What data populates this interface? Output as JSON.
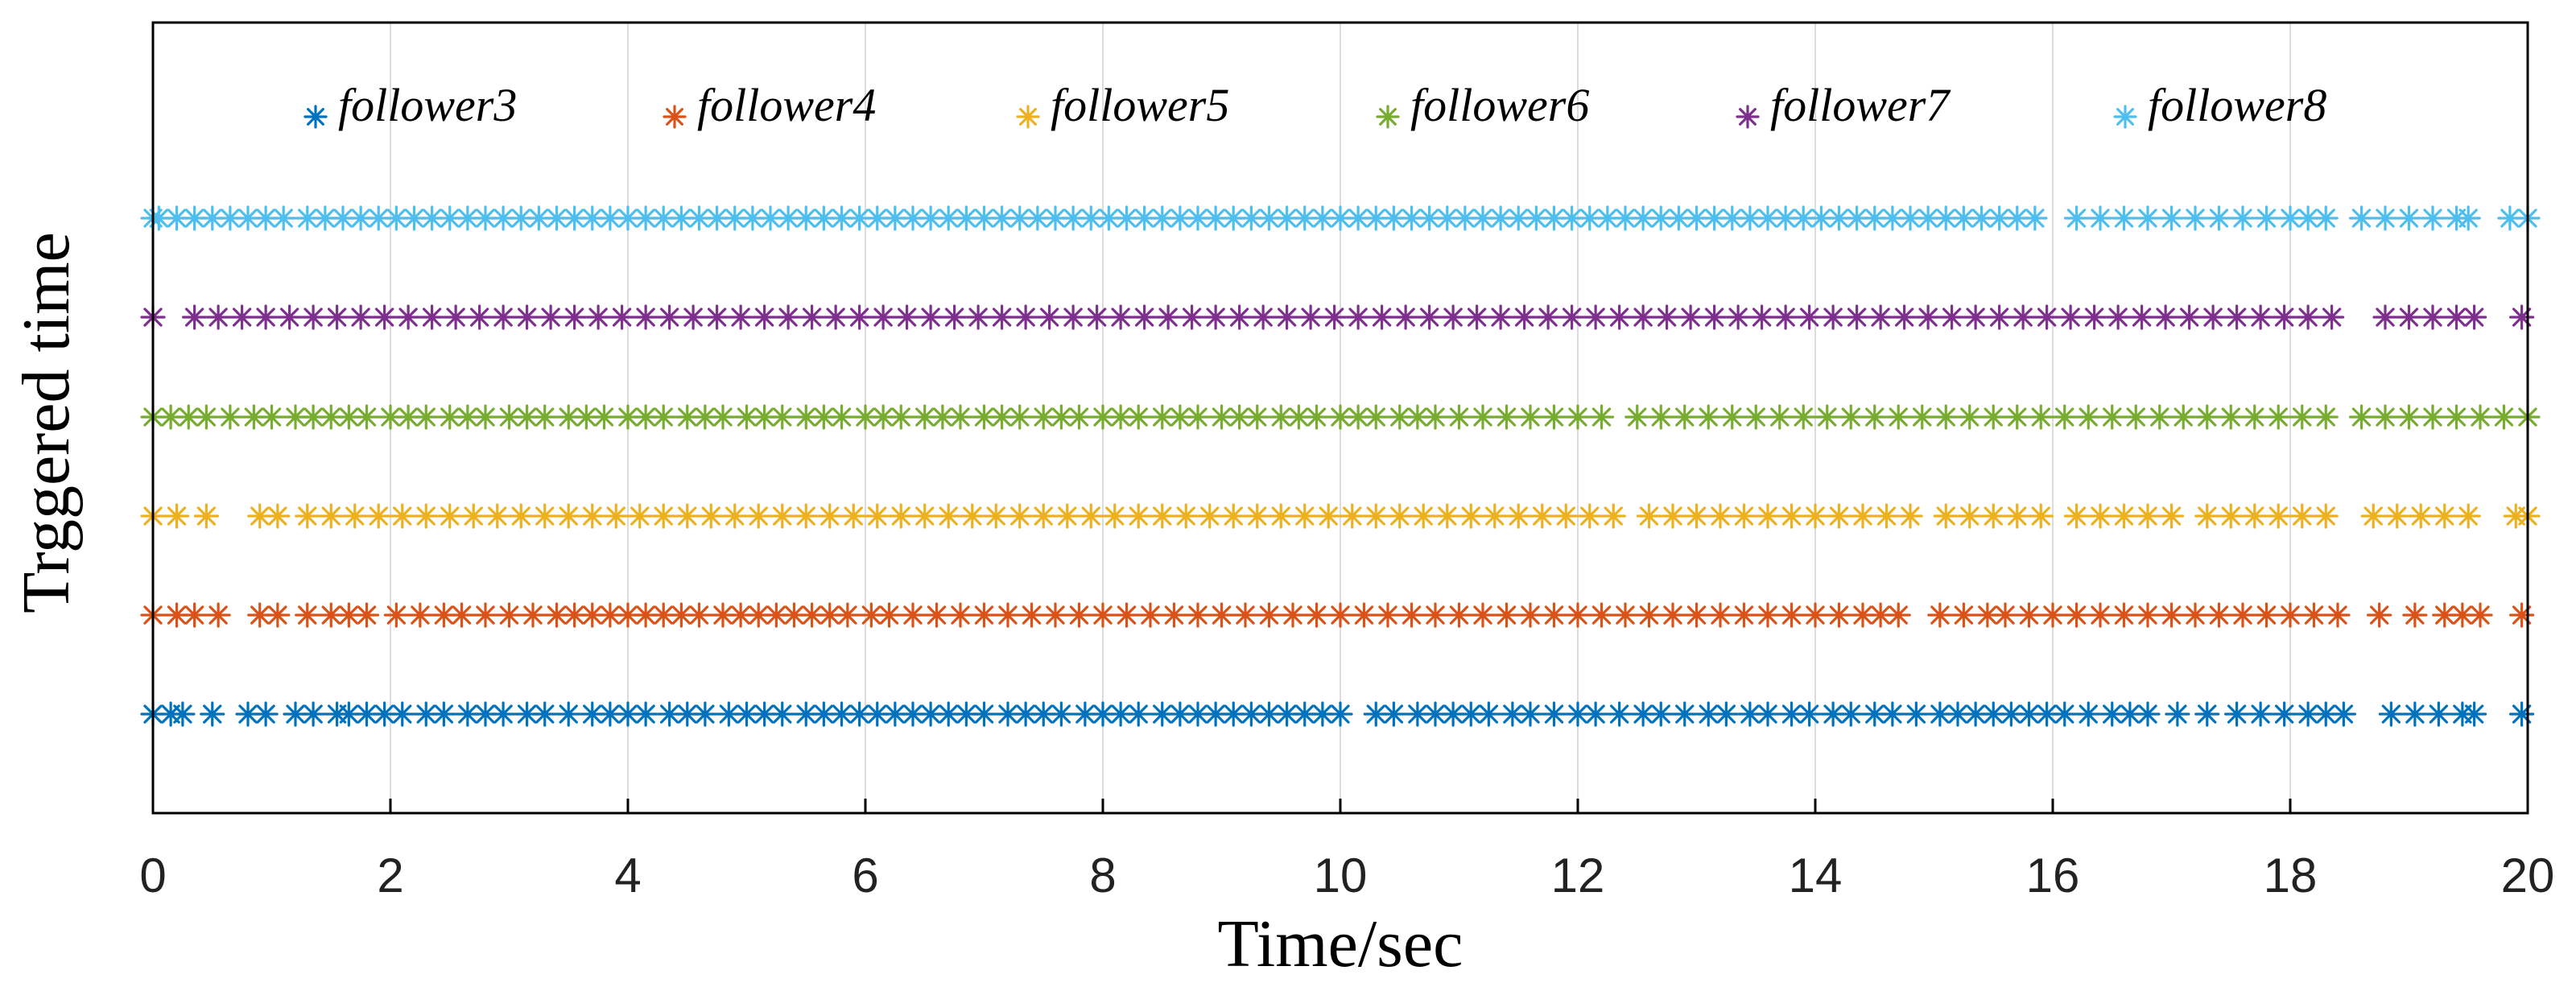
{
  "chart_data": {
    "type": "scatter",
    "title": "",
    "xlabel": "Time/sec",
    "ylabel": "Trggered time",
    "xlim": [
      0,
      20
    ],
    "xticks": [
      "0",
      "2",
      "4",
      "6",
      "8",
      "10",
      "12",
      "14",
      "16",
      "18",
      "20"
    ],
    "grid": "vertical",
    "legend": "top, single row inside axes",
    "marker": "asterisk",
    "series": [
      {
        "name": "follower3",
        "color": "#0072BD",
        "row": 1,
        "x": [
          0.0,
          0.15,
          0.25,
          0.5,
          0.8,
          0.95,
          1.2,
          1.35,
          1.55,
          1.65,
          1.8,
          1.95,
          2.1,
          2.3,
          2.45,
          2.65,
          2.8,
          2.95,
          3.15,
          3.3,
          3.5,
          3.7,
          3.85,
          4.0,
          4.15,
          4.35,
          4.5,
          4.65,
          4.85,
          5.0,
          5.15,
          5.3,
          5.5,
          5.65,
          5.8,
          5.95,
          6.1,
          6.25,
          6.4,
          6.55,
          6.7,
          6.85,
          7.0,
          7.2,
          7.35,
          7.5,
          7.65,
          7.85,
          8.0,
          8.15,
          8.3,
          8.5,
          8.65,
          8.8,
          8.95,
          9.1,
          9.25,
          9.4,
          9.55,
          9.7,
          9.85,
          10.0,
          10.3,
          10.45,
          10.65,
          10.8,
          10.95,
          11.1,
          11.25,
          11.45,
          11.6,
          11.8,
          12.0,
          12.15,
          12.35,
          12.55,
          12.7,
          12.9,
          13.1,
          13.25,
          13.45,
          13.6,
          13.8,
          13.95,
          14.15,
          14.3,
          14.5,
          14.65,
          14.85,
          15.05,
          15.2,
          15.35,
          15.5,
          15.65,
          15.8,
          15.95,
          16.1,
          16.3,
          16.5,
          16.65,
          16.8,
          17.05,
          17.3,
          17.55,
          17.75,
          17.95,
          18.15,
          18.3,
          18.45,
          18.85,
          19.05,
          19.25,
          19.45,
          19.55,
          19.95
        ]
      },
      {
        "name": "follower4",
        "color": "#D95319",
        "row": 2,
        "x": [
          0.0,
          0.2,
          0.35,
          0.55,
          0.9,
          1.05,
          1.3,
          1.5,
          1.65,
          1.8,
          2.05,
          2.25,
          2.45,
          2.6,
          2.8,
          3.0,
          3.2,
          3.4,
          3.55,
          3.7,
          3.85,
          4.0,
          4.15,
          4.3,
          4.45,
          4.6,
          4.8,
          4.95,
          5.1,
          5.25,
          5.4,
          5.55,
          5.7,
          5.85,
          6.05,
          6.2,
          6.4,
          6.6,
          6.8,
          7.0,
          7.2,
          7.4,
          7.6,
          7.8,
          8.0,
          8.2,
          8.4,
          8.6,
          8.8,
          9.0,
          9.2,
          9.4,
          9.6,
          9.8,
          10.0,
          10.2,
          10.4,
          10.6,
          10.8,
          11.0,
          11.2,
          11.4,
          11.6,
          11.8,
          12.0,
          12.2,
          12.4,
          12.6,
          12.8,
          13.0,
          13.2,
          13.4,
          13.6,
          13.8,
          14.0,
          14.2,
          14.4,
          14.55,
          14.7,
          15.05,
          15.25,
          15.45,
          15.6,
          15.8,
          16.0,
          16.2,
          16.4,
          16.6,
          16.8,
          17.0,
          17.2,
          17.4,
          17.6,
          17.8,
          18.0,
          18.2,
          18.4,
          18.75,
          19.05,
          19.3,
          19.45,
          19.6,
          19.95
        ]
      },
      {
        "name": "follower5",
        "color": "#EDB120",
        "row": 3,
        "x": [
          0.0,
          0.2,
          0.45,
          0.9,
          1.05,
          1.3,
          1.5,
          1.7,
          1.9,
          2.1,
          2.3,
          2.5,
          2.7,
          2.9,
          3.1,
          3.3,
          3.5,
          3.7,
          3.9,
          4.1,
          4.3,
          4.5,
          4.7,
          4.9,
          5.1,
          5.3,
          5.5,
          5.7,
          5.9,
          6.1,
          6.3,
          6.5,
          6.7,
          6.9,
          7.1,
          7.3,
          7.5,
          7.7,
          7.9,
          8.1,
          8.3,
          8.5,
          8.7,
          8.9,
          9.1,
          9.3,
          9.5,
          9.7,
          9.9,
          10.1,
          10.3,
          10.5,
          10.7,
          10.9,
          11.1,
          11.3,
          11.5,
          11.7,
          11.9,
          12.1,
          12.3,
          12.6,
          12.8,
          13.0,
          13.2,
          13.4,
          13.6,
          13.8,
          14.0,
          14.2,
          14.4,
          14.6,
          14.8,
          15.1,
          15.3,
          15.5,
          15.7,
          15.9,
          16.2,
          16.4,
          16.6,
          16.8,
          17.0,
          17.3,
          17.5,
          17.7,
          17.9,
          18.1,
          18.3,
          18.7,
          18.9,
          19.1,
          19.3,
          19.5,
          19.9,
          20.0
        ]
      },
      {
        "name": "follower6",
        "color": "#77AC30",
        "row": 4,
        "x": [
          0.0,
          0.15,
          0.3,
          0.45,
          0.65,
          0.85,
          1.0,
          1.2,
          1.35,
          1.5,
          1.65,
          1.8,
          2.0,
          2.15,
          2.3,
          2.5,
          2.65,
          2.8,
          3.0,
          3.15,
          3.3,
          3.5,
          3.65,
          3.8,
          4.0,
          4.15,
          4.3,
          4.5,
          4.65,
          4.8,
          5.0,
          5.15,
          5.3,
          5.5,
          5.65,
          5.8,
          6.0,
          6.15,
          6.3,
          6.5,
          6.65,
          6.8,
          7.0,
          7.15,
          7.3,
          7.5,
          7.65,
          7.8,
          8.0,
          8.15,
          8.3,
          8.5,
          8.65,
          8.8,
          9.0,
          9.15,
          9.3,
          9.5,
          9.65,
          9.8,
          10.0,
          10.15,
          10.3,
          10.5,
          10.65,
          10.8,
          11.0,
          11.2,
          11.4,
          11.6,
          11.8,
          12.0,
          12.2,
          12.5,
          12.7,
          12.9,
          13.1,
          13.3,
          13.5,
          13.7,
          13.9,
          14.1,
          14.3,
          14.5,
          14.7,
          14.9,
          15.1,
          15.3,
          15.5,
          15.7,
          15.9,
          16.1,
          16.3,
          16.5,
          16.7,
          16.9,
          17.1,
          17.3,
          17.5,
          17.7,
          17.9,
          18.1,
          18.3,
          18.6,
          18.8,
          19.0,
          19.2,
          19.4,
          19.6,
          19.8,
          20.0
        ]
      },
      {
        "name": "follower7",
        "color": "#7E2F8E",
        "row": 5,
        "x": [
          0.0,
          0.35,
          0.55,
          0.75,
          0.95,
          1.15,
          1.35,
          1.55,
          1.75,
          1.95,
          2.15,
          2.35,
          2.55,
          2.75,
          2.95,
          3.15,
          3.35,
          3.55,
          3.75,
          3.95,
          4.15,
          4.35,
          4.55,
          4.75,
          4.95,
          5.15,
          5.35,
          5.55,
          5.75,
          5.95,
          6.15,
          6.35,
          6.55,
          6.75,
          6.95,
          7.15,
          7.35,
          7.55,
          7.75,
          7.95,
          8.15,
          8.35,
          8.55,
          8.75,
          8.95,
          9.15,
          9.35,
          9.55,
          9.75,
          9.95,
          10.15,
          10.35,
          10.55,
          10.75,
          10.95,
          11.15,
          11.35,
          11.55,
          11.75,
          11.95,
          12.15,
          12.35,
          12.55,
          12.75,
          12.95,
          13.15,
          13.35,
          13.55,
          13.75,
          13.95,
          14.15,
          14.35,
          14.55,
          14.75,
          14.95,
          15.15,
          15.35,
          15.55,
          15.75,
          15.95,
          16.15,
          16.35,
          16.55,
          16.75,
          16.95,
          17.15,
          17.35,
          17.55,
          17.75,
          17.95,
          18.15,
          18.35,
          18.8,
          19.0,
          19.2,
          19.4,
          19.55,
          19.95
        ]
      },
      {
        "name": "follower8",
        "color": "#4DBEEE",
        "row": 6,
        "x": [
          0.0,
          0.05,
          0.2,
          0.35,
          0.5,
          0.65,
          0.8,
          0.95,
          1.1,
          1.3,
          1.45,
          1.6,
          1.75,
          1.9,
          2.05,
          2.2,
          2.35,
          2.5,
          2.65,
          2.8,
          2.95,
          3.1,
          3.25,
          3.4,
          3.55,
          3.7,
          3.85,
          4.0,
          4.15,
          4.3,
          4.45,
          4.6,
          4.75,
          4.9,
          5.05,
          5.2,
          5.35,
          5.5,
          5.65,
          5.8,
          5.95,
          6.1,
          6.25,
          6.4,
          6.55,
          6.7,
          6.85,
          7.0,
          7.15,
          7.3,
          7.45,
          7.6,
          7.75,
          7.9,
          8.05,
          8.2,
          8.35,
          8.5,
          8.65,
          8.8,
          8.95,
          9.1,
          9.25,
          9.4,
          9.55,
          9.7,
          9.85,
          10.0,
          10.15,
          10.3,
          10.45,
          10.6,
          10.75,
          10.9,
          11.05,
          11.2,
          11.35,
          11.5,
          11.65,
          11.8,
          11.95,
          12.1,
          12.25,
          12.4,
          12.55,
          12.7,
          12.85,
          13.0,
          13.15,
          13.3,
          13.45,
          13.6,
          13.75,
          13.9,
          14.05,
          14.2,
          14.35,
          14.5,
          14.65,
          14.8,
          14.95,
          15.1,
          15.25,
          15.4,
          15.55,
          15.7,
          15.85,
          16.2,
          16.4,
          16.6,
          16.8,
          17.0,
          17.2,
          17.4,
          17.6,
          17.8,
          18.0,
          18.15,
          18.3,
          18.6,
          18.8,
          19.0,
          19.2,
          19.4,
          19.5,
          19.85,
          20.0
        ]
      }
    ]
  }
}
